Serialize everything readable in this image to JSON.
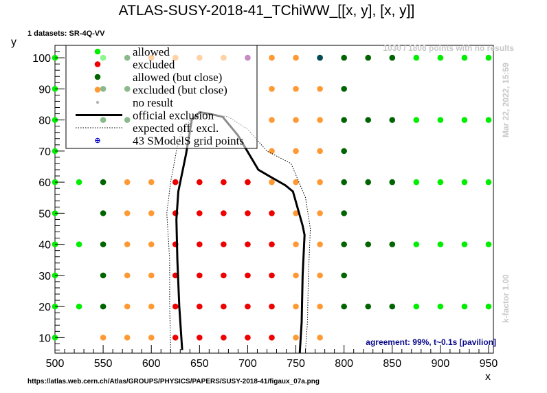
{
  "chart_data": {
    "type": "scatter",
    "title": "ATLAS-SUSY-2018-41_TChiWW_[[x, y], [x, y]]",
    "xlabel": "x",
    "ylabel": "y",
    "xlim": [
      500,
      955
    ],
    "ylim": [
      5,
      104
    ],
    "x_ticks": [
      500,
      550,
      600,
      650,
      700,
      750,
      800,
      850,
      900,
      950
    ],
    "y_ticks": [
      10,
      20,
      30,
      40,
      50,
      60,
      70,
      80,
      90,
      100
    ],
    "datasets_label": "1 datasets: SR-4Q-VV",
    "no_results_note": "1030 / 1808 points with no results",
    "timestamp": "Mar 22, 2022, 15:59",
    "kfactor": "k-factor 1.00",
    "agreement": "agreement: 99%, t~0.1s [pavilion]",
    "url": "https://atlas.web.cern.ch/Atlas/GROUPS/PHYSICS/PAPERS/SUSY-2018-41/figaux_07a.png",
    "colors": {
      "allowed": "#00ee00",
      "excluded": "#ee0000",
      "allowed_close": "#006400",
      "excluded_close": "#ff9933",
      "no_result": "#b4b4b4",
      "official": "#000000",
      "grid_marker": "#0000cc"
    },
    "legend": [
      {
        "key": "allowed",
        "label": "allowed",
        "style": "dot"
      },
      {
        "key": "excluded",
        "label": "excluded",
        "style": "dot"
      },
      {
        "key": "allowed_close",
        "label": "allowed (but close)",
        "style": "dot"
      },
      {
        "key": "excluded_close",
        "label": "excluded (but close)",
        "style": "dot"
      },
      {
        "key": "no_result",
        "label": "no result",
        "style": "smalldot"
      },
      {
        "key": "official",
        "label": "official exclusion",
        "style": "line"
      },
      {
        "key": "expected",
        "label": "expected off. excl.",
        "style": "dotted"
      },
      {
        "key": "grid",
        "label": "43 SModelS grid points",
        "style": "cross"
      }
    ],
    "series": [
      {
        "name": "allowed",
        "points": [
          [
            500,
            100
          ],
          [
            500,
            90
          ],
          [
            500,
            80
          ],
          [
            500,
            70
          ],
          [
            500,
            60
          ],
          [
            500,
            50
          ],
          [
            500,
            40
          ],
          [
            500,
            30
          ],
          [
            500,
            20
          ],
          [
            500,
            10
          ],
          [
            525,
            60
          ],
          [
            525,
            40
          ],
          [
            525,
            20
          ],
          [
            550,
            100
          ],
          [
            875,
            100
          ],
          [
            900,
            100
          ],
          [
            925,
            100
          ],
          [
            950,
            100
          ],
          [
            875,
            80
          ],
          [
            900,
            80
          ],
          [
            925,
            80
          ],
          [
            950,
            80
          ],
          [
            875,
            60
          ],
          [
            900,
            60
          ],
          [
            925,
            60
          ],
          [
            950,
            60
          ],
          [
            875,
            40
          ],
          [
            900,
            40
          ],
          [
            925,
            40
          ],
          [
            950,
            40
          ],
          [
            875,
            20
          ],
          [
            900,
            20
          ],
          [
            925,
            20
          ],
          [
            950,
            20
          ]
        ]
      },
      {
        "name": "excluded",
        "points": [
          [
            625,
            60
          ],
          [
            650,
            60
          ],
          [
            675,
            60
          ],
          [
            700,
            60
          ],
          [
            625,
            50
          ],
          [
            650,
            50
          ],
          [
            675,
            50
          ],
          [
            700,
            50
          ],
          [
            725,
            50
          ],
          [
            625,
            40
          ],
          [
            650,
            40
          ],
          [
            675,
            40
          ],
          [
            700,
            40
          ],
          [
            725,
            40
          ],
          [
            625,
            30
          ],
          [
            650,
            30
          ],
          [
            675,
            30
          ],
          [
            700,
            30
          ],
          [
            725,
            30
          ],
          [
            625,
            20
          ],
          [
            650,
            20
          ],
          [
            675,
            20
          ],
          [
            700,
            20
          ],
          [
            725,
            20
          ],
          [
            625,
            10
          ],
          [
            650,
            10
          ],
          [
            675,
            10
          ],
          [
            700,
            10
          ],
          [
            725,
            10
          ]
        ]
      },
      {
        "name": "allowed (but close)",
        "points": [
          [
            575,
            100
          ],
          [
            550,
            60
          ],
          [
            550,
            50
          ],
          [
            550,
            40
          ],
          [
            550,
            30
          ],
          [
            550,
            20
          ],
          [
            800,
            100
          ],
          [
            800,
            90
          ],
          [
            800,
            80
          ],
          [
            800,
            70
          ],
          [
            800,
            60
          ],
          [
            800,
            50
          ],
          [
            800,
            40
          ],
          [
            800,
            30
          ],
          [
            800,
            20
          ],
          [
            825,
            100
          ],
          [
            850,
            100
          ],
          [
            825,
            80
          ],
          [
            850,
            80
          ],
          [
            825,
            60
          ],
          [
            850,
            60
          ],
          [
            825,
            40
          ],
          [
            850,
            40
          ],
          [
            825,
            20
          ],
          [
            850,
            20
          ],
          [
            550,
            80
          ],
          [
            550,
            90
          ],
          [
            575,
            80
          ],
          [
            575,
            90
          ]
        ]
      },
      {
        "name": "excluded (but close)",
        "points": [
          [
            600,
            100
          ],
          [
            625,
            100
          ],
          [
            650,
            100
          ],
          [
            675,
            100
          ],
          [
            725,
            100
          ],
          [
            750,
            100
          ],
          [
            775,
            100
          ],
          [
            725,
            90
          ],
          [
            750,
            90
          ],
          [
            775,
            90
          ],
          [
            725,
            80
          ],
          [
            750,
            80
          ],
          [
            775,
            80
          ],
          [
            725,
            70
          ],
          [
            750,
            70
          ],
          [
            775,
            70
          ],
          [
            575,
            60
          ],
          [
            600,
            60
          ],
          [
            725,
            60
          ],
          [
            750,
            60
          ],
          [
            775,
            60
          ],
          [
            575,
            50
          ],
          [
            600,
            50
          ],
          [
            750,
            50
          ],
          [
            775,
            50
          ],
          [
            575,
            40
          ],
          [
            600,
            40
          ],
          [
            750,
            40
          ],
          [
            775,
            40
          ],
          [
            575,
            30
          ],
          [
            600,
            30
          ],
          [
            750,
            30
          ],
          [
            775,
            30
          ],
          [
            575,
            20
          ],
          [
            600,
            20
          ],
          [
            750,
            20
          ],
          [
            775,
            20
          ],
          [
            550,
            10
          ],
          [
            575,
            10
          ],
          [
            600,
            10
          ],
          [
            750,
            10
          ],
          [
            775,
            10
          ]
        ]
      },
      {
        "name": "teal",
        "points": [
          [
            775,
            100
          ]
        ]
      },
      {
        "name": "purple",
        "points": [
          [
            700,
            100
          ]
        ]
      }
    ],
    "official_exclusion": [
      [
        632,
        6
      ],
      [
        629,
        20
      ],
      [
        627,
        35
      ],
      [
        626,
        48
      ],
      [
        628,
        57
      ],
      [
        636,
        69
      ],
      [
        642,
        80
      ],
      [
        650,
        82.5
      ],
      [
        660,
        82
      ],
      [
        674,
        81
      ],
      [
        690,
        75
      ],
      [
        711,
        64
      ],
      [
        722,
        62
      ],
      [
        739,
        59
      ],
      [
        747,
        57
      ],
      [
        757,
        46
      ],
      [
        759,
        43
      ],
      [
        757,
        30
      ],
      [
        756,
        15
      ],
      [
        754,
        5
      ]
    ],
    "expected_exclusion": [
      [
        620,
        6
      ],
      [
        619,
        20
      ],
      [
        619,
        35
      ],
      [
        616,
        50
      ],
      [
        620,
        60
      ],
      [
        626,
        70
      ],
      [
        630,
        75
      ],
      [
        640,
        80
      ],
      [
        655,
        82
      ],
      [
        680,
        81
      ],
      [
        700,
        77
      ],
      [
        720,
        70
      ],
      [
        745,
        66
      ],
      [
        760,
        55
      ],
      [
        765,
        45
      ],
      [
        763,
        30
      ],
      [
        762,
        15
      ],
      [
        760,
        6
      ]
    ]
  }
}
